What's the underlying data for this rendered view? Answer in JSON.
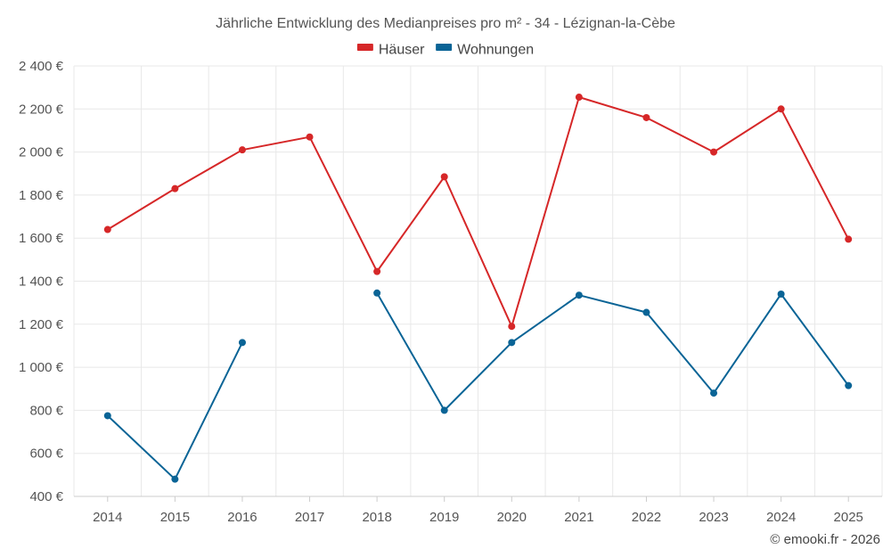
{
  "chart_data": {
    "type": "line",
    "title": "Jährliche Entwicklung des Medianpreises pro m² - 34 - Lézignan-la-Cèbe",
    "categories": [
      "2014",
      "2015",
      "2016",
      "2017",
      "2018",
      "2019",
      "2020",
      "2021",
      "2022",
      "2023",
      "2024",
      "2025"
    ],
    "ylim": [
      400,
      2400
    ],
    "yticks": [
      400,
      600,
      800,
      1000,
      1200,
      1400,
      1600,
      1800,
      2000,
      2200,
      2400
    ],
    "ytick_labels": [
      "400 €",
      "600 €",
      "800 €",
      "1 000 €",
      "1 200 €",
      "1 400 €",
      "1 600 €",
      "1 800 €",
      "2 000 €",
      "2 200 €",
      "2 400 €"
    ],
    "grid": true,
    "legend_position": "top-center",
    "series": [
      {
        "name": "Häuser",
        "color": "#d62728",
        "values": [
          1640,
          1830,
          2010,
          2070,
          1445,
          1885,
          1190,
          2255,
          2160,
          2000,
          2200,
          1595
        ]
      },
      {
        "name": "Wohnungen",
        "color": "#0a6496",
        "values": [
          775,
          480,
          1115,
          null,
          1345,
          800,
          1115,
          1335,
          1255,
          880,
          1340,
          915
        ]
      }
    ]
  },
  "credit": "© emooki.fr - 2026"
}
